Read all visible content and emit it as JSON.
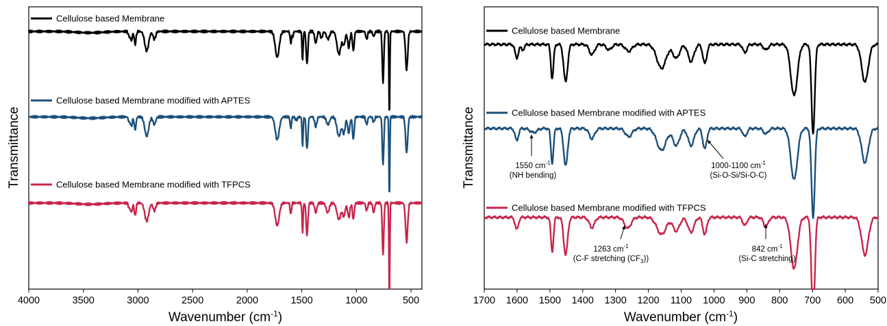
{
  "colors": {
    "black": "#000000",
    "blue": "#1b4f7a",
    "red": "#c8254b"
  },
  "chart_data": [
    {
      "type": "line",
      "xlabel": "Wavenumber (cm",
      "xlabel_sup": "-1",
      "xlabel_end": ")",
      "ylabel": "Transmittance",
      "xlim": [
        4000,
        400
      ],
      "xticks": [
        "4000",
        "3500",
        "3000",
        "2500",
        "2000",
        "1500",
        "1000",
        "500"
      ],
      "xtick_values": [
        4000,
        3500,
        3000,
        2500,
        2000,
        1500,
        1000,
        500
      ],
      "series": [
        {
          "name": "Cellulose based Membrane",
          "color": "#000000",
          "offset": 0,
          "peaks": [
            [
              3440,
              0.02,
              120
            ],
            [
              3080,
              0.08,
              8
            ],
            [
              3060,
              0.14,
              8
            ],
            [
              3026,
              0.2,
              8
            ],
            [
              2920,
              0.3,
              18
            ],
            [
              2850,
              0.12,
              12
            ],
            [
              1725,
              0.4,
              18
            ],
            [
              1601,
              0.18,
              6
            ],
            [
              1583,
              0.08,
              6
            ],
            [
              1493,
              0.45,
              5
            ],
            [
              1452,
              0.5,
              8
            ],
            [
              1372,
              0.18,
              10
            ],
            [
              1320,
              0.1,
              10
            ],
            [
              1260,
              0.12,
              14
            ],
            [
              1160,
              0.35,
              18
            ],
            [
              1115,
              0.2,
              12
            ],
            [
              1070,
              0.25,
              10
            ],
            [
              1028,
              0.3,
              8
            ],
            [
              906,
              0.12,
              8
            ],
            [
              842,
              0.08,
              8
            ],
            [
              756,
              0.8,
              7
            ],
            [
              698,
              1.35,
              4
            ],
            [
              540,
              0.6,
              10
            ]
          ]
        },
        {
          "name": "Cellulose based Membrane modified with APTES",
          "color": "#1b4f7a",
          "offset": 1,
          "peaks": [
            [
              3440,
              0.02,
              120
            ],
            [
              3080,
              0.08,
              8
            ],
            [
              3060,
              0.14,
              8
            ],
            [
              3026,
              0.2,
              8
            ],
            [
              2920,
              0.3,
              18
            ],
            [
              2850,
              0.12,
              12
            ],
            [
              1725,
              0.35,
              18
            ],
            [
              1601,
              0.18,
              6
            ],
            [
              1550,
              0.05,
              10
            ],
            [
              1493,
              0.45,
              5
            ],
            [
              1452,
              0.5,
              8
            ],
            [
              1372,
              0.15,
              10
            ],
            [
              1260,
              0.12,
              14
            ],
            [
              1160,
              0.3,
              18
            ],
            [
              1115,
              0.25,
              12
            ],
            [
              1070,
              0.25,
              10
            ],
            [
              1028,
              0.35,
              8
            ],
            [
              906,
              0.12,
              8
            ],
            [
              842,
              0.08,
              8
            ],
            [
              756,
              0.75,
              7
            ],
            [
              698,
              1.3,
              4
            ],
            [
              540,
              0.55,
              10
            ]
          ]
        },
        {
          "name": "Cellulose based Membrane modified with TFPCS",
          "color": "#c8254b",
          "offset": 2,
          "peaks": [
            [
              3440,
              0.02,
              120
            ],
            [
              3080,
              0.08,
              8
            ],
            [
              3060,
              0.14,
              8
            ],
            [
              3026,
              0.2,
              8
            ],
            [
              2920,
              0.28,
              18
            ],
            [
              2850,
              0.12,
              12
            ],
            [
              1725,
              0.35,
              18
            ],
            [
              1601,
              0.18,
              6
            ],
            [
              1493,
              0.45,
              5
            ],
            [
              1452,
              0.5,
              8
            ],
            [
              1372,
              0.15,
              10
            ],
            [
              1263,
              0.15,
              14
            ],
            [
              1160,
              0.25,
              18
            ],
            [
              1115,
              0.2,
              12
            ],
            [
              1070,
              0.22,
              10
            ],
            [
              1028,
              0.25,
              8
            ],
            [
              906,
              0.12,
              8
            ],
            [
              842,
              0.15,
              8
            ],
            [
              756,
              0.8,
              7
            ],
            [
              698,
              1.5,
              4
            ],
            [
              540,
              0.6,
              10
            ]
          ]
        }
      ]
    },
    {
      "type": "line",
      "xlabel": "Wavenumber (cm",
      "xlabel_sup": "-1",
      "xlabel_end": ")",
      "ylabel": "Transmittance",
      "xlim": [
        1700,
        500
      ],
      "xticks": [
        "1700",
        "1600",
        "1500",
        "1400",
        "1300",
        "1200",
        "1100",
        "1000",
        "900",
        "800",
        "700",
        "600",
        "500"
      ],
      "xtick_values": [
        1700,
        1600,
        1500,
        1400,
        1300,
        1200,
        1100,
        1000,
        900,
        800,
        700,
        600,
        500
      ],
      "series": [
        {
          "name": "Cellulose based Membrane",
          "color": "#000000",
          "offset": 0,
          "peaks": [
            [
              1601,
              0.2,
              5
            ],
            [
              1583,
              0.08,
              5
            ],
            [
              1493,
              0.5,
              4
            ],
            [
              1452,
              0.55,
              6
            ],
            [
              1372,
              0.15,
              8
            ],
            [
              1320,
              0.08,
              8
            ],
            [
              1260,
              0.1,
              10
            ],
            [
              1160,
              0.35,
              14
            ],
            [
              1115,
              0.2,
              10
            ],
            [
              1070,
              0.25,
              9
            ],
            [
              1028,
              0.28,
              6
            ],
            [
              906,
              0.12,
              6
            ],
            [
              842,
              0.08,
              7
            ],
            [
              756,
              0.75,
              10
            ],
            [
              698,
              1.3,
              5
            ],
            [
              540,
              0.55,
              10
            ]
          ]
        },
        {
          "name": "Cellulose based Membrane modified with APTES",
          "color": "#1b4f7a",
          "offset": 1,
          "peaks": [
            [
              1601,
              0.18,
              5
            ],
            [
              1550,
              0.06,
              10
            ],
            [
              1493,
              0.5,
              4
            ],
            [
              1452,
              0.55,
              6
            ],
            [
              1372,
              0.15,
              8
            ],
            [
              1260,
              0.12,
              10
            ],
            [
              1160,
              0.32,
              14
            ],
            [
              1115,
              0.25,
              10
            ],
            [
              1070,
              0.25,
              9
            ],
            [
              1028,
              0.3,
              6
            ],
            [
              906,
              0.12,
              6
            ],
            [
              842,
              0.08,
              7
            ],
            [
              756,
              0.75,
              10
            ],
            [
              698,
              1.3,
              5
            ],
            [
              540,
              0.5,
              10
            ]
          ]
        },
        {
          "name": "Cellulose based Membrane modified with TFPCS",
          "color": "#c8254b",
          "offset": 2,
          "peaks": [
            [
              1601,
              0.18,
              5
            ],
            [
              1493,
              0.5,
              4
            ],
            [
              1452,
              0.55,
              6
            ],
            [
              1372,
              0.15,
              8
            ],
            [
              1263,
              0.16,
              10
            ],
            [
              1160,
              0.25,
              14
            ],
            [
              1115,
              0.2,
              10
            ],
            [
              1070,
              0.22,
              9
            ],
            [
              1028,
              0.25,
              6
            ],
            [
              906,
              0.12,
              6
            ],
            [
              842,
              0.14,
              7
            ],
            [
              756,
              0.75,
              10
            ],
            [
              698,
              1.5,
              5
            ],
            [
              540,
              0.55,
              10
            ]
          ]
        }
      ],
      "annotations": [
        {
          "line1": "1550 cm",
          "sup1": "-1",
          "line2": "(NH bending)",
          "x": 1575,
          "series": 1
        },
        {
          "line1": "1000-1100 cm",
          "sup1": "-1",
          "line2": "(Si-O-Si/Si-O-C)",
          "x": 1015,
          "series": 1
        },
        {
          "line1": "1263 cm",
          "sup1": "-1",
          "line2": "(C-F stretching (CF",
          "sub2": "3",
          "line2_end": "))",
          "x": 1270,
          "series": 2
        },
        {
          "line1": "842 cm",
          "sup1": "-1",
          "line2": "(Si-C stretching)",
          "x": 842,
          "series": 2
        }
      ]
    }
  ]
}
